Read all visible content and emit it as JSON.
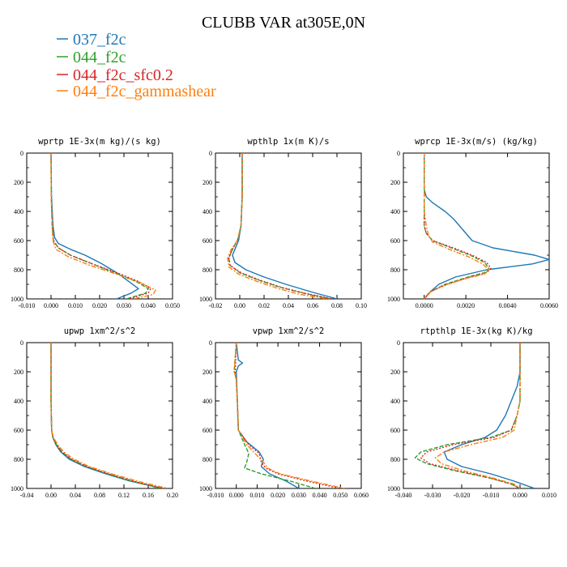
{
  "title": "CLUBB VAR at305E,0N",
  "legend": [
    {
      "label": "037_f2c",
      "color": "#1f77b4"
    },
    {
      "label": "044_f2c",
      "color": "#2ca02c"
    },
    {
      "label": "044_f2c_sfc0.2",
      "color": "#d62728"
    },
    {
      "label": "044_f2c_gammashear",
      "color": "#ff7f0e"
    }
  ],
  "chart_data": [
    {
      "type": "line",
      "title": "wprtp 1E-3x(m kg)/(s kg)",
      "xlim": [
        -0.01,
        0.05
      ],
      "ylim": [
        1000,
        0
      ],
      "xticks": [
        "-0.010",
        "0.000",
        "0.010",
        "0.020",
        "0.030",
        "0.040",
        "0.050"
      ],
      "yticks": [
        "0",
        "200",
        "400",
        "600",
        "800",
        "1000"
      ],
      "series": [
        {
          "y": [
            0,
            300,
            500,
            580,
            620,
            660,
            700,
            760,
            820,
            880,
            930,
            960,
            1000
          ],
          "x": [
            0,
            0.0002,
            0.0008,
            0.0015,
            0.003,
            0.008,
            0.014,
            0.021,
            0.027,
            0.032,
            0.036,
            0.033,
            0.027
          ]
        },
        {
          "y": [
            0,
            300,
            500,
            600,
            650,
            700,
            760,
            820,
            880,
            930,
            960,
            1000
          ],
          "x": [
            0,
            0.0001,
            0.0005,
            0.001,
            0.003,
            0.008,
            0.017,
            0.026,
            0.035,
            0.04,
            0.039,
            0.031
          ]
        },
        {
          "y": [
            0,
            300,
            500,
            600,
            650,
            700,
            760,
            820,
            880,
            930,
            960,
            1000
          ],
          "x": [
            0,
            0.0001,
            0.0005,
            0.001,
            0.003,
            0.008,
            0.017,
            0.027,
            0.036,
            0.041,
            0.04,
            0.032
          ]
        },
        {
          "y": [
            0,
            300,
            500,
            600,
            660,
            710,
            770,
            830,
            890,
            940,
            970,
            1000
          ],
          "x": [
            0,
            0.0001,
            0.0004,
            0.0008,
            0.002,
            0.007,
            0.016,
            0.027,
            0.037,
            0.043,
            0.042,
            0.034
          ]
        }
      ]
    },
    {
      "type": "line",
      "title": "wpthlp 1x(m K)/s",
      "xlim": [
        -0.02,
        0.1
      ],
      "ylim": [
        1000,
        0
      ],
      "xticks": [
        "-0.02",
        "0.00",
        "0.02",
        "0.04",
        "0.06",
        "0.08",
        "0.10"
      ],
      "yticks": [
        "0",
        "200",
        "400",
        "600",
        "800",
        "1000"
      ],
      "series": [
        {
          "y": [
            0,
            300,
            500,
            600,
            660,
            700,
            750,
            800,
            850,
            900,
            950,
            1000
          ],
          "x": [
            0.002,
            0.002,
            0.001,
            -0.001,
            -0.004,
            -0.006,
            -0.004,
            0.005,
            0.02,
            0.038,
            0.058,
            0.08
          ]
        },
        {
          "y": [
            0,
            300,
            500,
            600,
            660,
            720,
            770,
            820,
            870,
            920,
            960,
            1000
          ],
          "x": [
            0.002,
            0.002,
            0.001,
            -0.002,
            -0.006,
            -0.009,
            -0.008,
            0.0,
            0.015,
            0.033,
            0.052,
            0.075
          ]
        },
        {
          "y": [
            0,
            300,
            500,
            600,
            660,
            720,
            770,
            820,
            870,
            920,
            960,
            1000
          ],
          "x": [
            0.002,
            0.002,
            0.001,
            -0.002,
            -0.006,
            -0.009,
            -0.008,
            0.001,
            0.016,
            0.034,
            0.053,
            0.076
          ]
        },
        {
          "y": [
            0,
            300,
            500,
            600,
            660,
            720,
            780,
            830,
            880,
            930,
            970,
            1000
          ],
          "x": [
            0.002,
            0.002,
            0.001,
            -0.002,
            -0.007,
            -0.01,
            -0.009,
            -0.001,
            0.014,
            0.032,
            0.05,
            0.072
          ]
        }
      ]
    },
    {
      "type": "line",
      "title": "wprcp 1E-3x(m/s) (kg/kg)",
      "xlim": [
        -0.001,
        0.006
      ],
      "ylim": [
        1000,
        0
      ],
      "xticks": [
        "0.0000",
        "0.0020",
        "0.0040",
        "0.0060"
      ],
      "yticks": [
        "0",
        "200",
        "400",
        "600",
        "800",
        "1000"
      ],
      "series": [
        {
          "y": [
            0,
            250,
            300,
            340,
            400,
            450,
            500,
            600,
            650,
            700,
            730,
            760,
            800,
            850,
            900,
            950,
            1000
          ],
          "x": [
            0,
            0,
            0.0001,
            0.0004,
            0.001,
            0.0014,
            0.0017,
            0.0023,
            0.0033,
            0.0053,
            0.006,
            0.0052,
            0.003,
            0.0015,
            0.0007,
            0.0003,
            0
          ]
        },
        {
          "y": [
            0,
            300,
            400,
            500,
            550,
            600,
            650,
            700,
            750,
            790,
            820,
            850,
            900,
            950,
            1000
          ],
          "x": [
            0,
            0,
            0,
            0,
            0.0001,
            0.0004,
            0.0013,
            0.0022,
            0.0029,
            0.0031,
            0.0029,
            0.0021,
            0.001,
            0.0003,
            0
          ]
        },
        {
          "y": [
            0,
            300,
            400,
            500,
            550,
            600,
            650,
            700,
            750,
            790,
            820,
            850,
            900,
            950,
            1000
          ],
          "x": [
            0,
            0,
            0,
            0,
            0.0001,
            0.0004,
            0.0014,
            0.0023,
            0.003,
            0.0032,
            0.003,
            0.0022,
            0.0011,
            0.0003,
            0
          ]
        },
        {
          "y": [
            0,
            300,
            400,
            500,
            560,
            610,
            660,
            710,
            760,
            800,
            830,
            860,
            910,
            960,
            1000
          ],
          "x": [
            0,
            0,
            0,
            0.0001,
            0.0002,
            0.0004,
            0.0012,
            0.0021,
            0.0028,
            0.0031,
            0.0029,
            0.002,
            0.0009,
            0.0002,
            0
          ]
        }
      ]
    },
    {
      "type": "line",
      "title": "upwp 1xm^2/s^2",
      "xlim": [
        -0.04,
        0.2
      ],
      "ylim": [
        1000,
        0
      ],
      "xticks": [
        "-0.04",
        "0.00",
        "0.04",
        "0.08",
        "0.12",
        "0.16",
        "0.20"
      ],
      "yticks": [
        "0",
        "200",
        "400",
        "600",
        "800",
        "1000"
      ],
      "series": [
        {
          "y": [
            0,
            400,
            600,
            650,
            700,
            750,
            800,
            850,
            900,
            950,
            1000
          ],
          "x": [
            0,
            0,
            0.001,
            0.003,
            0.008,
            0.016,
            0.03,
            0.055,
            0.09,
            0.13,
            0.185
          ]
        },
        {
          "y": [
            0,
            400,
            600,
            650,
            700,
            750,
            800,
            850,
            900,
            950,
            1000
          ],
          "x": [
            0,
            0,
            0.001,
            0.003,
            0.009,
            0.018,
            0.033,
            0.058,
            0.093,
            0.133,
            0.18
          ]
        },
        {
          "y": [
            0,
            400,
            600,
            650,
            700,
            750,
            800,
            850,
            900,
            950,
            1000
          ],
          "x": [
            0,
            0,
            0.001,
            0.003,
            0.009,
            0.018,
            0.034,
            0.059,
            0.095,
            0.136,
            0.183
          ]
        },
        {
          "y": [
            0,
            400,
            600,
            650,
            700,
            750,
            800,
            850,
            900,
            950,
            1000
          ],
          "x": [
            0,
            0,
            0.001,
            0.004,
            0.011,
            0.021,
            0.038,
            0.063,
            0.1,
            0.142,
            0.192
          ]
        }
      ]
    },
    {
      "type": "line",
      "title": "vpwp 1xm^2/s^2",
      "xlim": [
        -0.01,
        0.06
      ],
      "ylim": [
        1000,
        0
      ],
      "xticks": [
        "-0.010",
        "0.000",
        "0.010",
        "0.020",
        "0.030",
        "0.040",
        "0.050",
        "0.060"
      ],
      "yticks": [
        "0",
        "200",
        "400",
        "600",
        "800",
        "1000"
      ],
      "series": [
        {
          "y": [
            0,
            120,
            140,
            160,
            200,
            400,
            600,
            680,
            750,
            800,
            850,
            900,
            950,
            1000
          ],
          "x": [
            0,
            0.001,
            0.003,
            0.001,
            0,
            0.0005,
            0.001,
            0.005,
            0.011,
            0.013,
            0.012,
            0.016,
            0.024,
            0.03
          ]
        },
        {
          "y": [
            0,
            200,
            250,
            400,
            600,
            700,
            760,
            820,
            860,
            900,
            950,
            1000
          ],
          "x": [
            0,
            -0.001,
            0,
            0.0005,
            0.001,
            0.004,
            0.006,
            0.005,
            0.004,
            0.012,
            0.026,
            0.038
          ]
        },
        {
          "y": [
            0,
            200,
            250,
            400,
            600,
            700,
            760,
            820,
            860,
            900,
            950,
            1000
          ],
          "x": [
            0,
            -0.0005,
            0,
            0.0005,
            0.001,
            0.006,
            0.011,
            0.012,
            0.014,
            0.02,
            0.034,
            0.05
          ]
        },
        {
          "y": [
            0,
            200,
            250,
            400,
            600,
            700,
            760,
            820,
            860,
            900,
            950,
            1000
          ],
          "x": [
            0,
            -0.001,
            0,
            0.0005,
            0.001,
            0.005,
            0.009,
            0.013,
            0.015,
            0.021,
            0.036,
            0.052
          ]
        }
      ]
    },
    {
      "type": "line",
      "title": "rtpthlp 1E-3x(kg K)/kg",
      "xlim": [
        -0.04,
        0.01
      ],
      "ylim": [
        1000,
        0
      ],
      "xticks": [
        "-0.040",
        "-0.030",
        "-0.020",
        "-0.010",
        "0.000",
        "0.010"
      ],
      "yticks": [
        "0",
        "200",
        "400",
        "600",
        "800",
        "1000"
      ],
      "series": [
        {
          "y": [
            0,
            200,
            300,
            400,
            500,
            600,
            650,
            700,
            750,
            800,
            850,
            900,
            950,
            1000
          ],
          "x": [
            0,
            0,
            -0.001,
            -0.003,
            -0.005,
            -0.008,
            -0.012,
            -0.02,
            -0.026,
            -0.025,
            -0.02,
            -0.01,
            -0.002,
            0.005
          ]
        },
        {
          "y": [
            0,
            400,
            500,
            600,
            650,
            700,
            750,
            790,
            830,
            880,
            930,
            970,
            1000
          ],
          "x": [
            0,
            0,
            -0.001,
            -0.003,
            -0.01,
            -0.025,
            -0.034,
            -0.036,
            -0.032,
            -0.022,
            -0.01,
            -0.003,
            0
          ]
        },
        {
          "y": [
            0,
            400,
            500,
            600,
            650,
            700,
            750,
            790,
            830,
            880,
            930,
            970,
            1000
          ],
          "x": [
            0,
            0,
            -0.001,
            -0.003,
            -0.009,
            -0.023,
            -0.032,
            -0.034,
            -0.031,
            -0.021,
            -0.01,
            -0.003,
            0
          ]
        },
        {
          "y": [
            0,
            400,
            500,
            600,
            650,
            700,
            750,
            790,
            830,
            880,
            930,
            970,
            1000
          ],
          "x": [
            0,
            0,
            -0.001,
            -0.002,
            -0.006,
            -0.017,
            -0.026,
            -0.029,
            -0.027,
            -0.019,
            -0.009,
            -0.002,
            0
          ]
        }
      ]
    }
  ]
}
